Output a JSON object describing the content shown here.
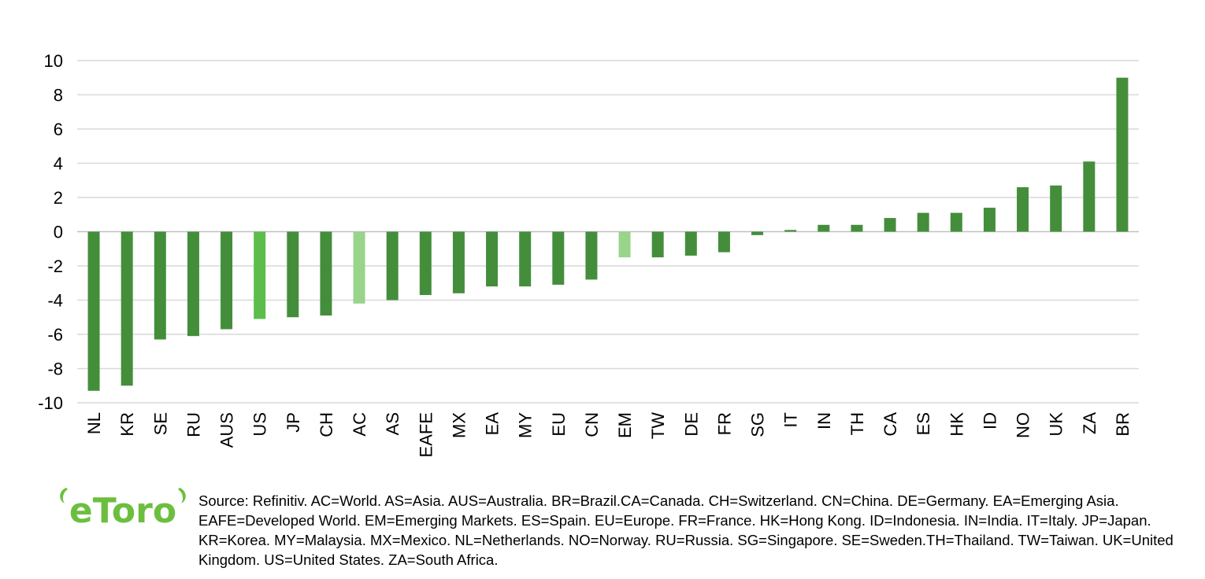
{
  "chart_data": {
    "type": "bar",
    "categories": [
      "NL",
      "KR",
      "SE",
      "RU",
      "AUS",
      "US",
      "JP",
      "CH",
      "AC",
      "AS",
      "EAFE",
      "MX",
      "EA",
      "MY",
      "EU",
      "CN",
      "EM",
      "TW",
      "DE",
      "FR",
      "SG",
      "IT",
      "IN",
      "TH",
      "CA",
      "ES",
      "HK",
      "ID",
      "NO",
      "UK",
      "ZA",
      "BR"
    ],
    "values": [
      -9.3,
      -9.0,
      -6.3,
      -6.1,
      -5.7,
      -5.1,
      -5.0,
      -4.9,
      -4.2,
      -4.0,
      -3.7,
      -3.6,
      -3.2,
      -3.2,
      -3.1,
      -2.8,
      -1.5,
      -1.5,
      -1.4,
      -1.2,
      -0.2,
      0.1,
      0.4,
      0.4,
      0.8,
      1.1,
      1.1,
      1.4,
      2.6,
      2.7,
      4.1,
      9.0
    ],
    "highlight": {
      "US": "#5cbd4b",
      "AC": "#98d48a",
      "EM": "#98d48a"
    },
    "bar_color": "#448e3b",
    "yticks": [
      10,
      8,
      6,
      4,
      2,
      0,
      -2,
      -4,
      -6,
      -8,
      -10
    ],
    "ylim": [
      -10,
      10
    ],
    "grid": true,
    "title": "",
    "xlabel": "",
    "ylabel": ""
  },
  "footer": {
    "logo_text": "eToro",
    "logo_color": "#6cbf3e",
    "source_text": "Source: Refinitiv. AC=World. AS=Asia. AUS=Australia. BR=Brazil.CA=Canada. CH=Switzerland. CN=China. DE=Germany. EA=Emerging Asia. EAFE=Developed World. EM=Emerging Markets. ES=Spain. EU=Europe. FR=France. HK=Hong Kong. ID=Indonesia. IN=India. IT=Italy. JP=Japan. KR=Korea. MY=Malaysia. MX=Mexico. NL=Netherlands. NO=Norway. RU=Russia. SG=Singapore. SE=Sweden.TH=Thailand. TW=Taiwan. UK=United Kingdom. US=United States. ZA=South Africa."
  }
}
